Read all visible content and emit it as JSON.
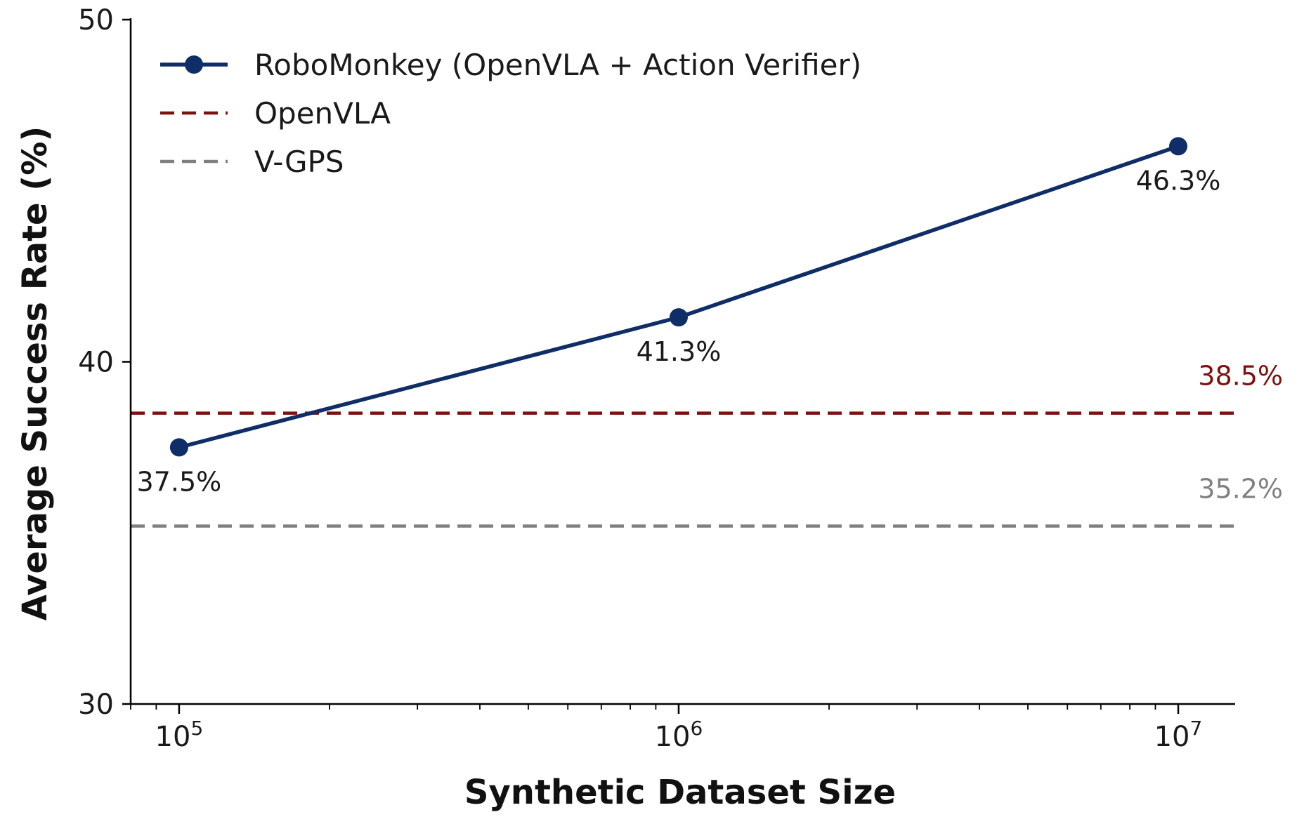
{
  "chart_data": {
    "type": "line",
    "xlabel": "Synthetic Dataset Size",
    "ylabel": "Average Success Rate (%)",
    "x_scale": "log",
    "xlim": [
      80000,
      13000000
    ],
    "ylim": [
      30,
      50
    ],
    "x_ticks": [
      {
        "value": 100000,
        "base": "10",
        "exp": "5"
      },
      {
        "value": 1000000,
        "base": "10",
        "exp": "6"
      },
      {
        "value": 10000000,
        "base": "10",
        "exp": "7"
      }
    ],
    "y_ticks": [
      {
        "value": 30,
        "label": "30"
      },
      {
        "value": 40,
        "label": "40"
      },
      {
        "value": 50,
        "label": "50"
      }
    ],
    "grid": false,
    "legend_position": "top-left",
    "series": [
      {
        "name": "RoboMonkey (OpenVLA + Action Verifier)",
        "color": "#0f2d66",
        "style": "solid-marker",
        "x": [
          100000,
          1000000,
          10000000
        ],
        "y": [
          37.5,
          41.3,
          46.3
        ],
        "labels": [
          "37.5%",
          "41.3%",
          "46.3%"
        ]
      }
    ],
    "baselines": [
      {
        "name": "OpenVLA",
        "value": 38.5,
        "label": "38.5%",
        "color": "#7f1010",
        "style": "dashed"
      },
      {
        "name": "V-GPS",
        "value": 35.2,
        "label": "35.2%",
        "color": "#808080",
        "style": "dashed"
      }
    ]
  }
}
